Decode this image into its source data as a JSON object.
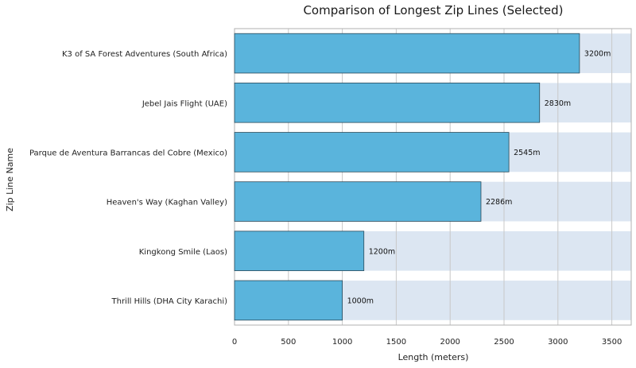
{
  "chart_data": {
    "type": "bar",
    "orientation": "horizontal",
    "title": "Comparison of Longest Zip Lines (Selected)",
    "xlabel": "Length (meters)",
    "ylabel": "Zip Line Name",
    "categories": [
      "K3 of SA Forest Adventures (South Africa)",
      "Jebel Jais Flight (UAE)",
      "Parque de Aventura Barrancas del Cobre (Mexico)",
      "Heaven's Way (Kaghan Valley)",
      "Kingkong Smile (Laos)",
      "Thrill Hills (DHA City Karachi)"
    ],
    "values": [
      3200,
      2830,
      2545,
      2286,
      1200,
      1000
    ],
    "data_labels": [
      "3200m",
      "2830m",
      "2545m",
      "2286m",
      "1200m",
      "1000m"
    ],
    "xlim": [
      0,
      3680
    ],
    "xticks": [
      0,
      500,
      1000,
      1500,
      2000,
      2500,
      3000,
      3500
    ],
    "xtick_labels": [
      "0",
      "500",
      "1000",
      "1500",
      "2000",
      "2500",
      "3000",
      "3500"
    ],
    "grid": "vertical",
    "colors": {
      "bar": "#5ab4dc",
      "bar_edge": "#2b4a5a",
      "band": "#dce6f2",
      "grid": "#c8c8c8",
      "frame": "#b0b0b0"
    }
  }
}
